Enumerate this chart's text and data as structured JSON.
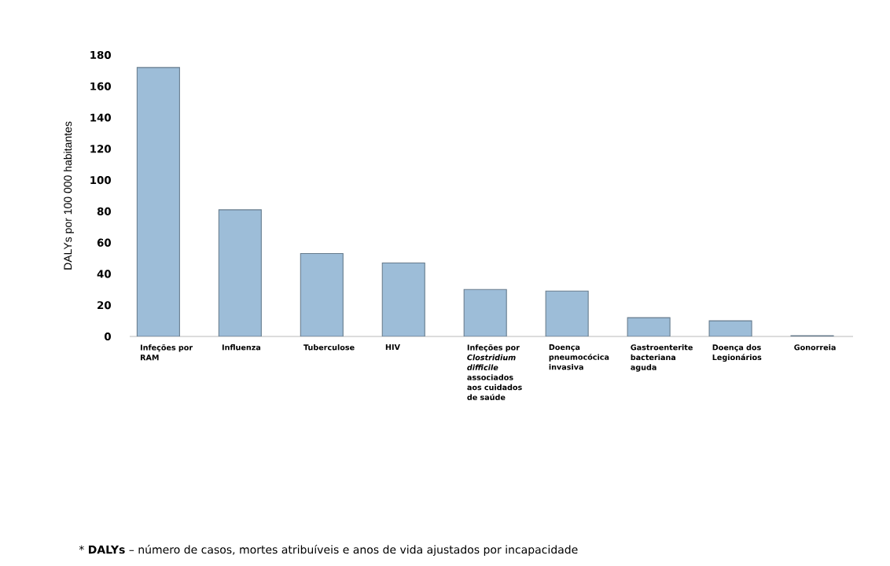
{
  "chart_data": {
    "type": "bar",
    "ylabel": "DALYs por 100 000 habitantes",
    "categories": [
      "Infeções por RAM",
      "Influenza",
      "Tuberculose",
      "HIV",
      "Infeções por *Clostridium difficile* associados aos cuidados de saúde",
      "Doença pneumocócica invasiva",
      "Gastroenterite bacteriana aguda",
      "Doença dos Legionários",
      "Gonorreia"
    ],
    "values": [
      172,
      81,
      53,
      47,
      30,
      29,
      12,
      10,
      0.5
    ],
    "color": "#9dbdd8",
    "ylim": [
      0,
      180
    ],
    "yticks": [
      0,
      20,
      40,
      60,
      80,
      100,
      120,
      140,
      160,
      180
    ],
    "annotations": [
      "* **DALYs** – número de casos, mortes atribuíveis e anos de vida ajustados por incapacidade"
    ]
  }
}
